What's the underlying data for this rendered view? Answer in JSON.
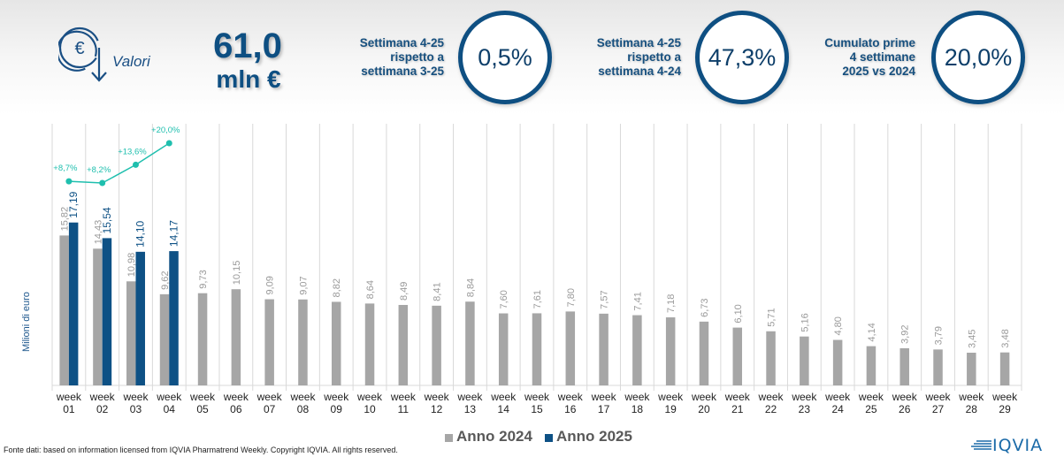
{
  "header": {
    "icon": "euro-down-arrow-icon",
    "valori_label": "Valori",
    "kpi_value": "61,0",
    "kpi_unit": "mln €",
    "stats": [
      {
        "label_lines": [
          "Settimana 4-25",
          "rispetto a",
          "settimana 3-25"
        ],
        "value": "0,5%"
      },
      {
        "label_lines": [
          "Settimana 4-25",
          "rispetto a",
          "settimana 4-24"
        ],
        "value": "47,3%"
      },
      {
        "label_lines": [
          "Cumulato prime",
          "4 settimane",
          "2025 vs 2024"
        ],
        "value": "20,0%"
      }
    ]
  },
  "colors": {
    "series_2024": "#a6a6a6",
    "series_2025": "#0e5185",
    "growth_line": "#1fbfae",
    "primary": "#0e4f82"
  },
  "chart_data": {
    "type": "bar",
    "title": "",
    "xlabel": "",
    "ylabel": "Milioni di euro",
    "ylim": [
      0,
      20
    ],
    "grid": "vertical category separators",
    "legend_position": "bottom",
    "categories": [
      "week 01",
      "week 02",
      "week 03",
      "week 04",
      "week 05",
      "week 06",
      "week 07",
      "week 08",
      "week 09",
      "week 10",
      "week 11",
      "week 12",
      "week 13",
      "week 14",
      "week 15",
      "week 16",
      "week 17",
      "week 18",
      "week 19",
      "week 20",
      "week 21",
      "week 22",
      "week 23",
      "week 24",
      "week 25",
      "week 26",
      "week 27",
      "week 28",
      "week 29"
    ],
    "series": [
      {
        "name": "Anno 2024",
        "values": [
          15.82,
          14.43,
          10.98,
          9.62,
          9.73,
          10.15,
          9.09,
          9.07,
          8.82,
          8.64,
          8.49,
          8.41,
          8.84,
          7.6,
          7.61,
          7.8,
          7.57,
          7.41,
          7.18,
          6.73,
          6.1,
          5.71,
          5.16,
          4.8,
          4.14,
          3.92,
          3.79,
          3.45,
          3.48
        ],
        "labels": [
          "15,82",
          "14,43",
          "10,98",
          "9,62",
          "9,73",
          "10,15",
          "9,09",
          "9,07",
          "8,82",
          "8,64",
          "8,49",
          "8,41",
          "8,84",
          "7,60",
          "7,61",
          "7,80",
          "7,57",
          "7,41",
          "7,18",
          "6,73",
          "6,10",
          "5,71",
          "5,16",
          "4,80",
          "4,14",
          "3,92",
          "3,79",
          "3,45",
          "3,48"
        ]
      },
      {
        "name": "Anno 2025",
        "values": [
          17.19,
          15.54,
          14.1,
          14.17
        ],
        "labels": [
          "17,19",
          "15,54",
          "14,10",
          "14,17"
        ]
      }
    ],
    "growth_line": {
      "name": "cumulative growth 2025 vs 2024",
      "values": [
        8.7,
        8.2,
        13.6,
        20.0
      ],
      "labels": [
        "+8,7%",
        "+8,2%",
        "+13,6%",
        "+20,0%"
      ]
    }
  },
  "legend": [
    {
      "label": "Anno 2024"
    },
    {
      "label": "Anno 2025"
    }
  ],
  "footer": {
    "source": "Fonte dati: based on information licensed from IQVIA Pharmatrend Weekly. Copyright IQVIA. All rights reserved.",
    "logo_text": "IQVIA"
  }
}
